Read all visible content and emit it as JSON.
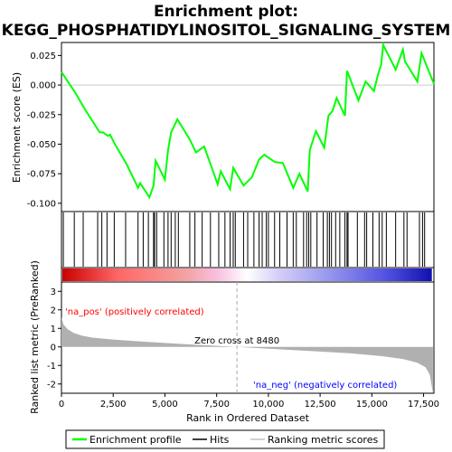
{
  "chart_data": {
    "type": "line",
    "title_line1": "Enrichment plot:",
    "title_line2": "KEGG_PHOSPHATIDYLINOSITOL_SIGNALING_SYSTEM",
    "es_ylabel": "Enrichment score (ES)",
    "rank_ylabel": "Ranked list metric (PreRanked)",
    "xlabel": "Rank in Ordered Dataset",
    "xlim": [
      0,
      18000
    ],
    "x_ticks": [
      0,
      2500,
      5000,
      7500,
      10000,
      12500,
      15000,
      17500
    ],
    "x_tick_labels": [
      "0",
      "2,500",
      "5,000",
      "7,500",
      "10,000",
      "12,500",
      "15,000",
      "17,500"
    ],
    "es_ylim": [
      -0.107,
      0.036
    ],
    "es_ticks": [
      0.025,
      0.0,
      -0.025,
      -0.05,
      -0.075,
      -0.1
    ],
    "es_tick_labels": [
      "0.025",
      "0.000",
      "-0.025",
      "-0.050",
      "-0.075",
      "-0.100"
    ],
    "rank_ylim": [
      -2.5,
      3.5
    ],
    "rank_ticks": [
      3,
      2,
      1,
      0,
      -1,
      -2
    ],
    "rank_tick_labels": [
      "3",
      "2",
      "1",
      "0",
      "-1",
      "-2"
    ],
    "zero_cross": 8480,
    "zero_cross_label": "Zero cross at 8480",
    "pos_label": "'na_pos' (positively correlated)",
    "neg_label": "'na_neg' (negatively correlated)",
    "series": [
      {
        "name": "Enrichment profile",
        "color": "#00ff00",
        "x": [
          0,
          650,
          1150,
          1850,
          2000,
          2250,
          2350,
          2550,
          3150,
          3700,
          3800,
          4250,
          4450,
          4550,
          5000,
          5150,
          5300,
          5600,
          6200,
          6500,
          6900,
          7550,
          7700,
          8150,
          8300,
          8800,
          9200,
          9550,
          9800,
          10300,
          10700,
          11200,
          11500,
          11900,
          12000,
          12300,
          12700,
          12900,
          13100,
          13300,
          13700,
          13800,
          14350,
          14700,
          15100,
          15300,
          15450,
          15550,
          16150,
          16500,
          16600,
          17200,
          17400,
          18000
        ],
        "y": [
          0.011,
          -0.006,
          -0.021,
          -0.04,
          -0.04,
          -0.043,
          -0.042,
          -0.049,
          -0.067,
          -0.087,
          -0.083,
          -0.095,
          -0.085,
          -0.064,
          -0.08,
          -0.055,
          -0.04,
          -0.029,
          -0.046,
          -0.057,
          -0.052,
          -0.084,
          -0.073,
          -0.088,
          -0.07,
          -0.085,
          -0.078,
          -0.063,
          -0.059,
          -0.065,
          -0.066,
          -0.087,
          -0.075,
          -0.09,
          -0.055,
          -0.039,
          -0.053,
          -0.026,
          -0.022,
          -0.011,
          -0.026,
          0.012,
          -0.013,
          0.003,
          -0.005,
          0.009,
          0.017,
          0.034,
          0.013,
          0.03,
          0.02,
          0.003,
          0.027,
          0.001
        ]
      }
    ],
    "hits": [
      90,
      620,
      1050,
      1750,
      1950,
      2200,
      2550,
      3100,
      3700,
      3950,
      4200,
      4450,
      4500,
      4600,
      4950,
      5150,
      5300,
      5500,
      5650,
      6200,
      6450,
      6800,
      7200,
      7600,
      7900,
      8150,
      8300,
      8400,
      8800,
      9000,
      9300,
      9550,
      9700,
      9900,
      10000,
      10300,
      10550,
      10900,
      11200,
      11350,
      11700,
      11850,
      11950,
      12050,
      12350,
      12650,
      12850,
      12950,
      13050,
      13250,
      13450,
      13700,
      13800,
      13850,
      14300,
      14650,
      14750,
      15050,
      15350,
      15500,
      15700,
      16150,
      16550,
      16700,
      17300,
      17450,
      17550
    ],
    "rank_metric": {
      "x": [
        0,
        100,
        300,
        600,
        1000,
        1500,
        2500,
        4000,
        6000,
        8480,
        10000,
        12000,
        14000,
        15500,
        16500,
        17200,
        17600,
        17800,
        17950
      ],
      "y": [
        1.6,
        1.2,
        0.95,
        0.75,
        0.6,
        0.5,
        0.4,
        0.28,
        0.15,
        0.0,
        -0.1,
        -0.22,
        -0.35,
        -0.5,
        -0.65,
        -0.85,
        -1.1,
        -1.5,
        -2.5
      ]
    },
    "legend": {
      "items": [
        {
          "label": "Enrichment profile",
          "color": "#00ff00"
        },
        {
          "label": "Hits",
          "color": "#000000"
        },
        {
          "label": "Ranking metric scores",
          "color": "#c0c0c0"
        }
      ]
    },
    "colors": {
      "pos_text": "#ff0000",
      "neg_text": "#0000ff",
      "zero_line": "#aaaaaa",
      "metric_fill": "#b0b0b0"
    }
  }
}
